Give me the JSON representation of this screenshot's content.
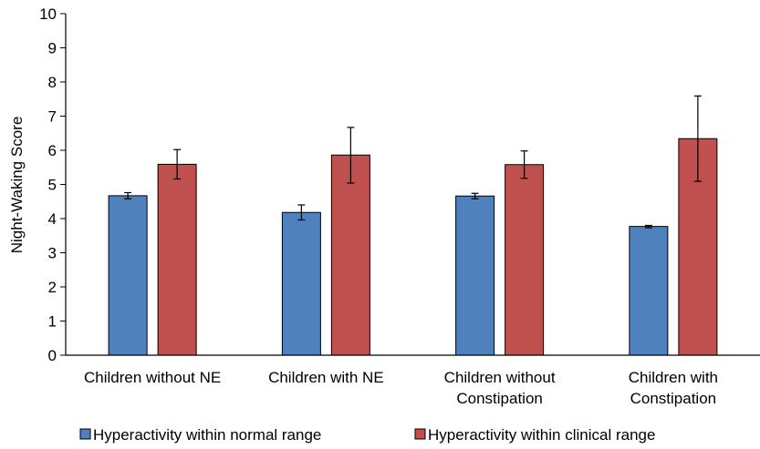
{
  "chart_data": {
    "type": "bar",
    "ylabel": "Night-Waking Score",
    "ylim": [
      0,
      10
    ],
    "yticks": [
      0,
      1,
      2,
      3,
      4,
      5,
      6,
      7,
      8,
      9,
      10
    ],
    "grid": false,
    "legend_position": "bottom",
    "categories": [
      [
        "Children without NE"
      ],
      [
        "Children with NE"
      ],
      [
        "Children without",
        "Constipation"
      ],
      [
        "Children with",
        "Constipation"
      ]
    ],
    "series": [
      {
        "name": "Hyperactivity within normal range",
        "color": "#4f81bd",
        "values": [
          4.67,
          4.18,
          4.66,
          3.77
        ],
        "error_low": [
          4.58,
          3.96,
          4.58,
          3.73
        ],
        "error_high": [
          4.76,
          4.4,
          4.74,
          3.8
        ]
      },
      {
        "name": "Hyperactivity within clinical range",
        "color": "#c0504d",
        "values": [
          5.59,
          5.86,
          5.58,
          6.34
        ],
        "error_low": [
          5.16,
          5.04,
          5.18,
          5.09
        ],
        "error_high": [
          6.02,
          6.67,
          5.98,
          7.59
        ]
      }
    ]
  }
}
